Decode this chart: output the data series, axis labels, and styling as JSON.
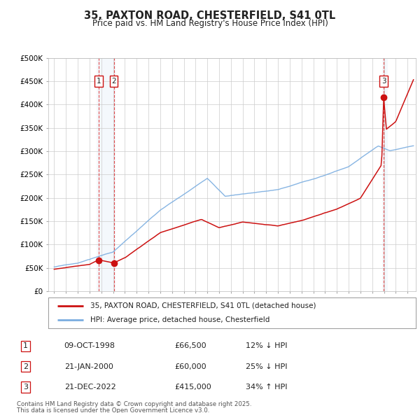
{
  "title": "35, PAXTON ROAD, CHESTERFIELD, S41 0TL",
  "subtitle": "Price paid vs. HM Land Registry's House Price Index (HPI)",
  "legend_line1": "35, PAXTON ROAD, CHESTERFIELD, S41 0TL (detached house)",
  "legend_line2": "HPI: Average price, detached house, Chesterfield",
  "footer1": "Contains HM Land Registry data © Crown copyright and database right 2025.",
  "footer2": "This data is licensed under the Open Government Licence v3.0.",
  "transactions": [
    {
      "num": 1,
      "date": "09-OCT-1998",
      "date_val": 1998.77,
      "price": 66500,
      "pct": "12%",
      "dir": "↓"
    },
    {
      "num": 2,
      "date": "21-JAN-2000",
      "date_val": 2000.06,
      "price": 60000,
      "pct": "25%",
      "dir": "↓"
    },
    {
      "num": 3,
      "date": "21-DEC-2022",
      "date_val": 2022.97,
      "price": 415000,
      "pct": "34%",
      "dir": "↑"
    }
  ],
  "hpi_color": "#7aade0",
  "price_color": "#cc1111",
  "vline_color": "#dd2222",
  "ylim": [
    0,
    500000
  ],
  "yticks": [
    0,
    50000,
    100000,
    150000,
    200000,
    250000,
    300000,
    350000,
    400000,
    450000,
    500000
  ],
  "xlim_start": 1994.5,
  "xlim_end": 2025.7,
  "background_color": "#ffffff",
  "grid_color": "#cccccc",
  "span_color": "#ddeeff"
}
